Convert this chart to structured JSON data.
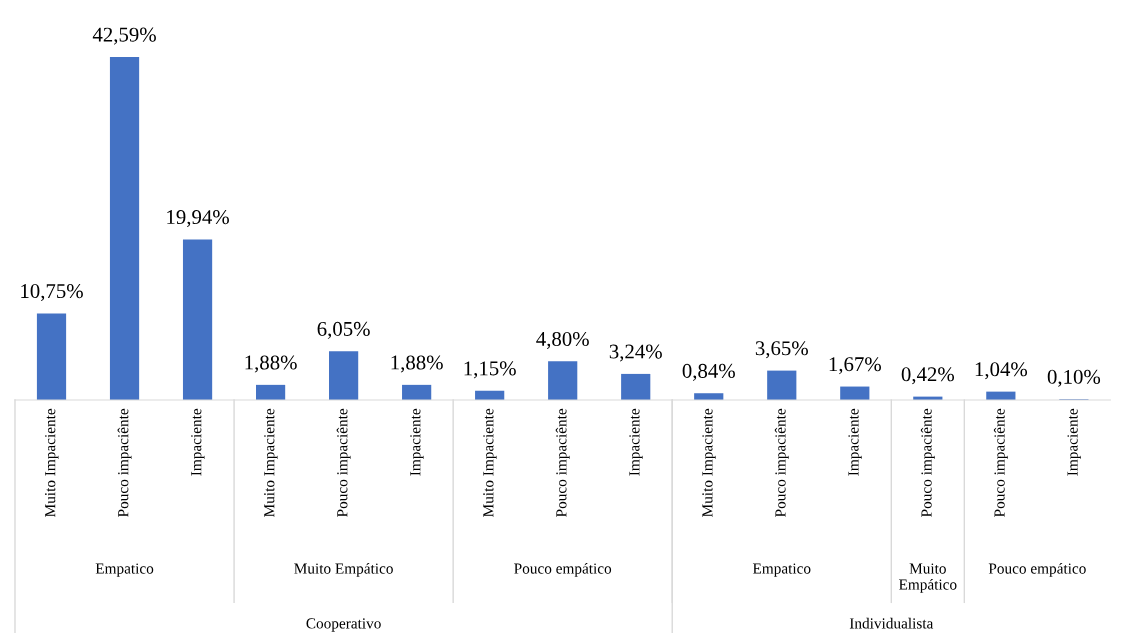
{
  "chart_data": {
    "type": "bar",
    "categories": [
      "Muito Impaciente",
      "Pouco impaciênte",
      "Impaciente",
      "Muito Impaciente",
      "Pouco impaciênte",
      "Impaciente",
      "Muito Impaciente",
      "Pouco impaciênte",
      "Impaciente",
      "Muito Impaciente",
      "Pouco impaciênte",
      "Impaciente",
      "Pouco impaciênte",
      "Pouco impaciênte",
      "Impaciente"
    ],
    "values": [
      10.75,
      42.59,
      19.94,
      1.88,
      6.05,
      1.88,
      1.15,
      4.8,
      3.24,
      0.84,
      3.65,
      1.67,
      0.42,
      1.04,
      0.1
    ],
    "value_labels": [
      "10,75%",
      "42,59%",
      "19,94%",
      "1,88%",
      "6,05%",
      "1,88%",
      "1,15%",
      "4,80%",
      "3,24%",
      "0,84%",
      "3,65%",
      "1,67%",
      "0,42%",
      "1,04%",
      "0,10%"
    ],
    "color": "#4472c4",
    "annotations": [
      "Empatico",
      "Muito Empático",
      "Pouco empático",
      "Empatico",
      "Muito Empático",
      "Pouco empático",
      "Cooperativo",
      "Individualista"
    ],
    "grid": false,
    "legend": false
  }
}
